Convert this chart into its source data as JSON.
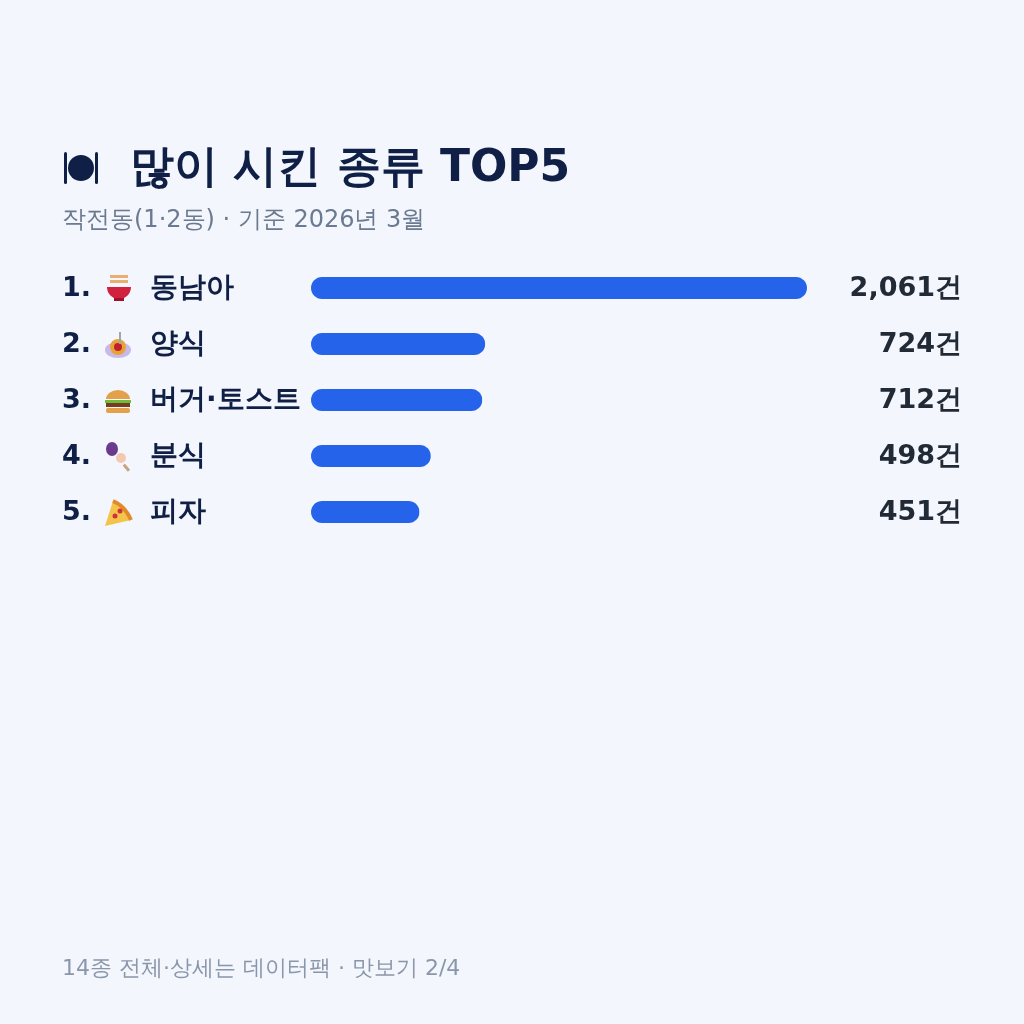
{
  "chart_data": {
    "type": "bar",
    "orientation": "horizontal",
    "title": "많이 시킨 종류 TOP5",
    "subtitle": "작전동(1·2동) · 기준 2026년 3월",
    "categories": [
      "1. 동남아",
      "2. 양식",
      "3. 버거·토스트",
      "4. 분식",
      "5. 피자"
    ],
    "values": [
      2061,
      724,
      712,
      498,
      451
    ],
    "value_labels": [
      "2,061건",
      "724건",
      "712건",
      "498건",
      "451건"
    ],
    "color": "#2563eb",
    "annotations": [
      "14종 전체·상세는 데이터팩 · 맛보기 2/4"
    ]
  }
}
